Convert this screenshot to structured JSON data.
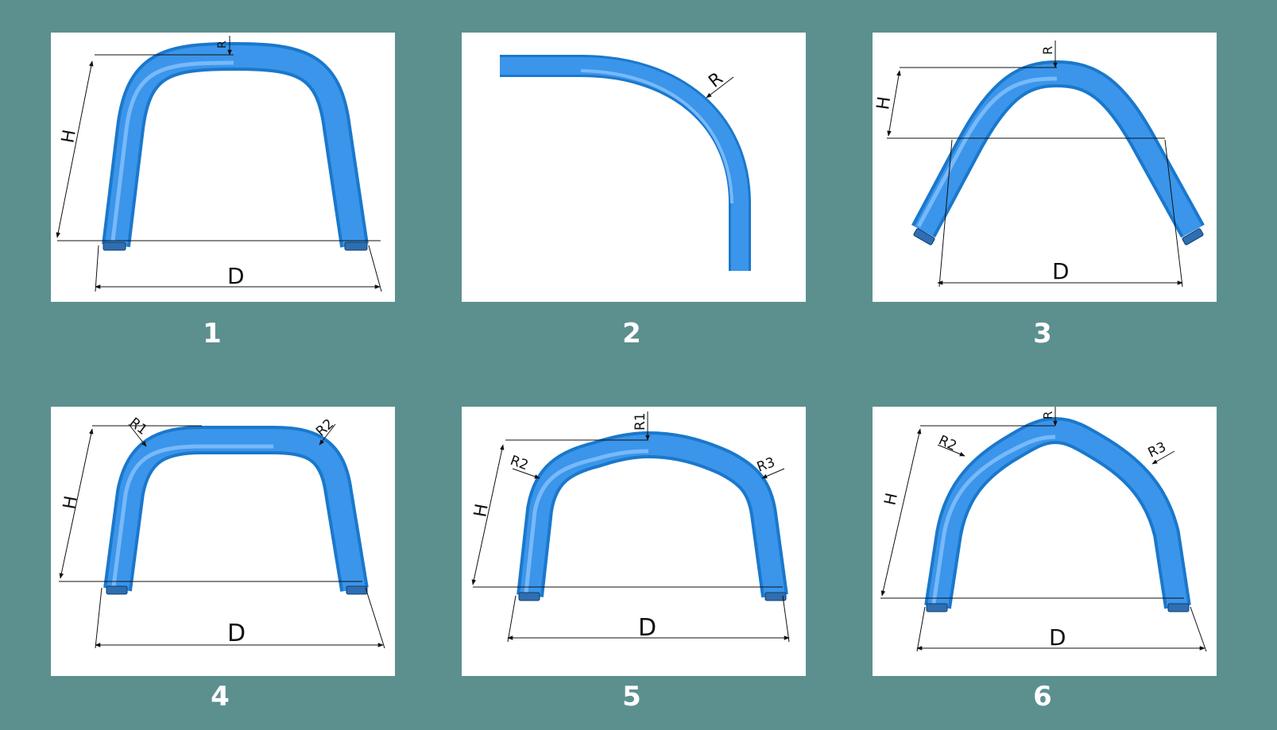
{
  "colors": {
    "background": "#5b908f",
    "panel": "#ffffff",
    "tube": "#3b95ea",
    "tube_dark": "#1a78cc",
    "tube_highlight": "#8cc6ff"
  },
  "panels": [
    {
      "number": "1",
      "labels": {
        "r": "R",
        "h": "H",
        "d": "D"
      }
    },
    {
      "number": "2",
      "labels": {
        "r": "R"
      }
    },
    {
      "number": "3",
      "labels": {
        "r": "R",
        "h": "H",
        "d": "D"
      }
    },
    {
      "number": "4",
      "labels": {
        "r1": "R1",
        "r2": "R2",
        "h": "H",
        "d": "D"
      }
    },
    {
      "number": "5",
      "labels": {
        "r1": "R1",
        "r2": "R2",
        "r3": "R3",
        "h": "H",
        "d": "D"
      }
    },
    {
      "number": "6",
      "labels": {
        "r": "R",
        "r2": "R2",
        "r3": "R3",
        "h": "H",
        "d": "D"
      }
    }
  ]
}
